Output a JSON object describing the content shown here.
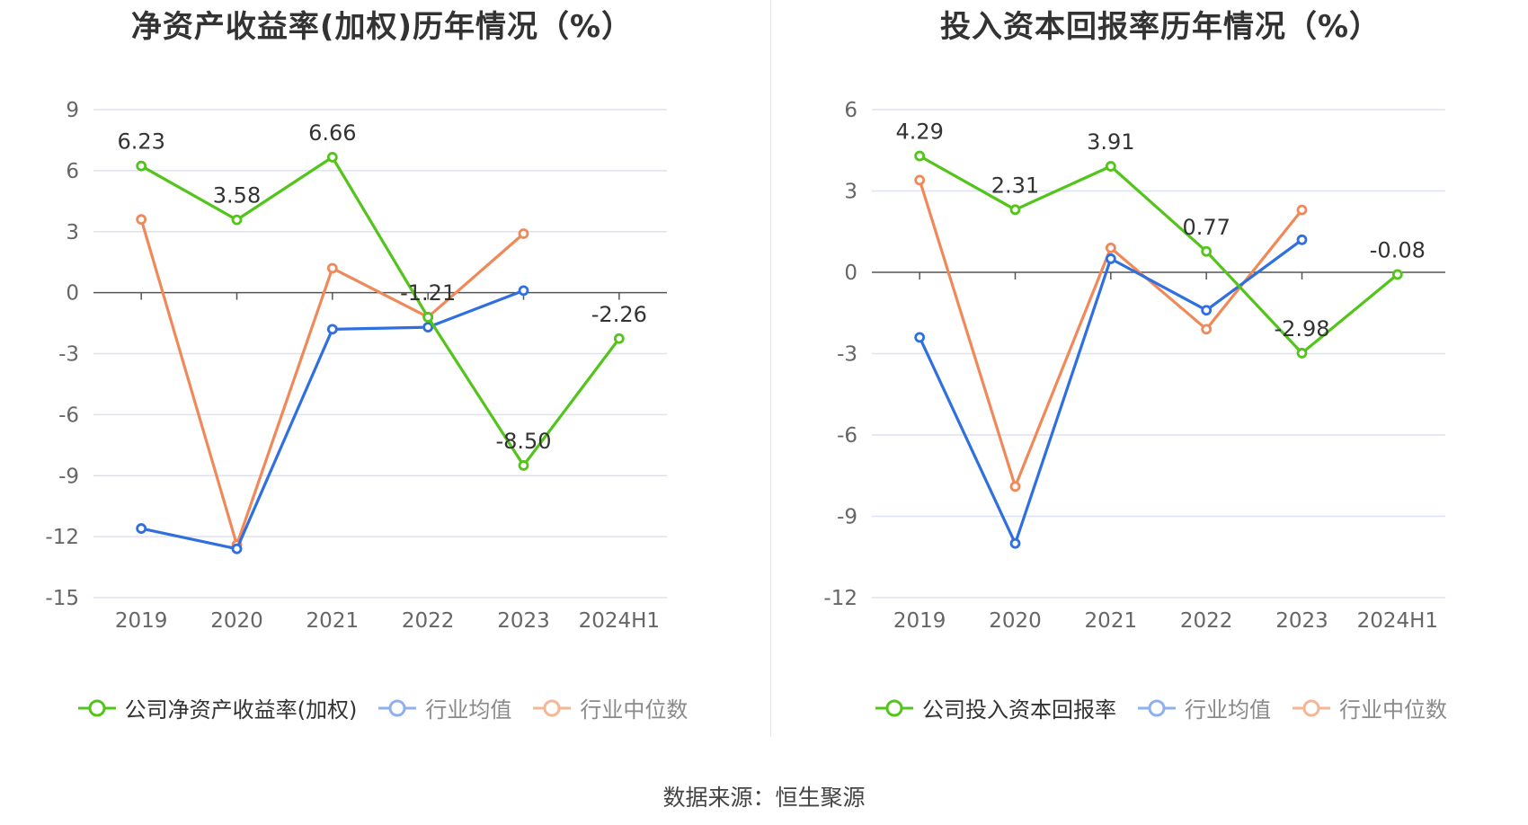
{
  "source": "数据来源：恒生聚源",
  "colors": {
    "company": "#52c41a",
    "avg": "#2f6fe0",
    "median": "#f0895a",
    "grid": "#dde2f2",
    "axis": "#555555"
  },
  "chart_data": [
    {
      "type": "line",
      "title": "净资产收益率(加权)历年情况（%）",
      "categories": [
        "2019",
        "2020",
        "2021",
        "2022",
        "2023",
        "2024H1"
      ],
      "ylim": [
        -15,
        9
      ],
      "yticks": [
        9,
        6,
        3,
        0,
        -3,
        -6,
        -9,
        -12,
        -15
      ],
      "grid": true,
      "legend_position": "bottom",
      "series": [
        {
          "name": "公司净资产收益率(加权)",
          "color": "#52c41a",
          "labels": true,
          "values": [
            6.23,
            3.58,
            6.66,
            -1.21,
            -8.5,
            -2.26
          ]
        },
        {
          "name": "行业均值",
          "color": "#2f6fe0",
          "labels": false,
          "values": [
            -11.6,
            -12.6,
            -1.8,
            -1.7,
            0.1,
            null
          ]
        },
        {
          "name": "行业中位数",
          "color": "#f0895a",
          "labels": false,
          "values": [
            3.6,
            -12.4,
            1.2,
            -1.2,
            2.9,
            null
          ]
        }
      ]
    },
    {
      "type": "line",
      "title": "投入资本回报率历年情况（%）",
      "categories": [
        "2019",
        "2020",
        "2021",
        "2022",
        "2023",
        "2024H1"
      ],
      "ylim": [
        -12,
        6
      ],
      "yticks": [
        6,
        3,
        0,
        -3,
        -6,
        -9,
        -12
      ],
      "grid": true,
      "legend_position": "bottom",
      "series": [
        {
          "name": "公司投入资本回报率",
          "color": "#52c41a",
          "labels": true,
          "values": [
            4.29,
            2.31,
            3.91,
            0.77,
            -2.98,
            -0.08
          ]
        },
        {
          "name": "行业均值",
          "color": "#2f6fe0",
          "labels": false,
          "values": [
            -2.4,
            -10.0,
            0.5,
            -1.4,
            1.2,
            null
          ]
        },
        {
          "name": "行业中位数",
          "color": "#f0895a",
          "labels": false,
          "values": [
            3.4,
            -7.9,
            0.9,
            -2.1,
            2.3,
            null
          ]
        }
      ]
    }
  ]
}
